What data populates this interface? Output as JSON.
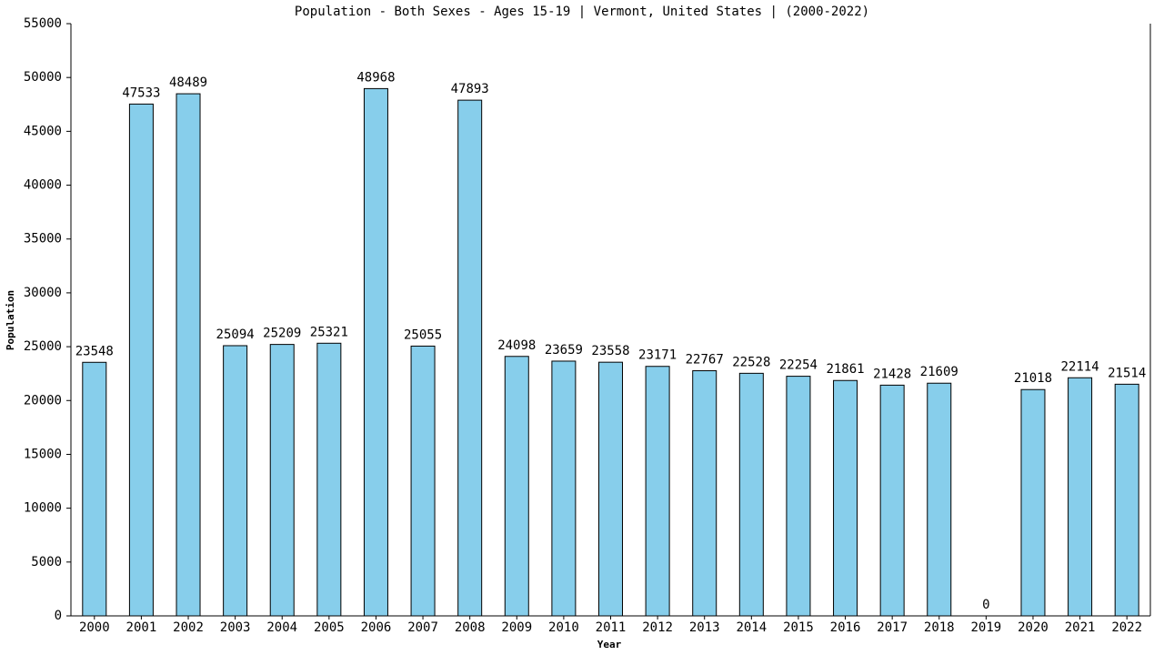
{
  "chart_data": {
    "type": "bar",
    "title": "Population - Both Sexes - Ages 15-19 | Vermont, United States |  (2000-2022)",
    "x_label": "Year",
    "y_label": "Population",
    "categories": [
      "2000",
      "2001",
      "2002",
      "2003",
      "2004",
      "2005",
      "2006",
      "2007",
      "2008",
      "2009",
      "2010",
      "2011",
      "2012",
      "2013",
      "2014",
      "2015",
      "2016",
      "2017",
      "2018",
      "2019",
      "2020",
      "2021",
      "2022"
    ],
    "values": [
      23548,
      47533,
      48489,
      25094,
      25209,
      25321,
      48968,
      25055,
      47893,
      24098,
      23659,
      23558,
      23171,
      22767,
      22528,
      22254,
      21861,
      21428,
      21609,
      0,
      21018,
      22114,
      21514
    ],
    "color": "#87ceeb",
    "ylim": [
      0,
      55000
    ],
    "yticks": [
      0,
      5000,
      10000,
      15000,
      20000,
      25000,
      30000,
      35000,
      40000,
      45000,
      50000,
      55000
    ],
    "grid": false
  }
}
